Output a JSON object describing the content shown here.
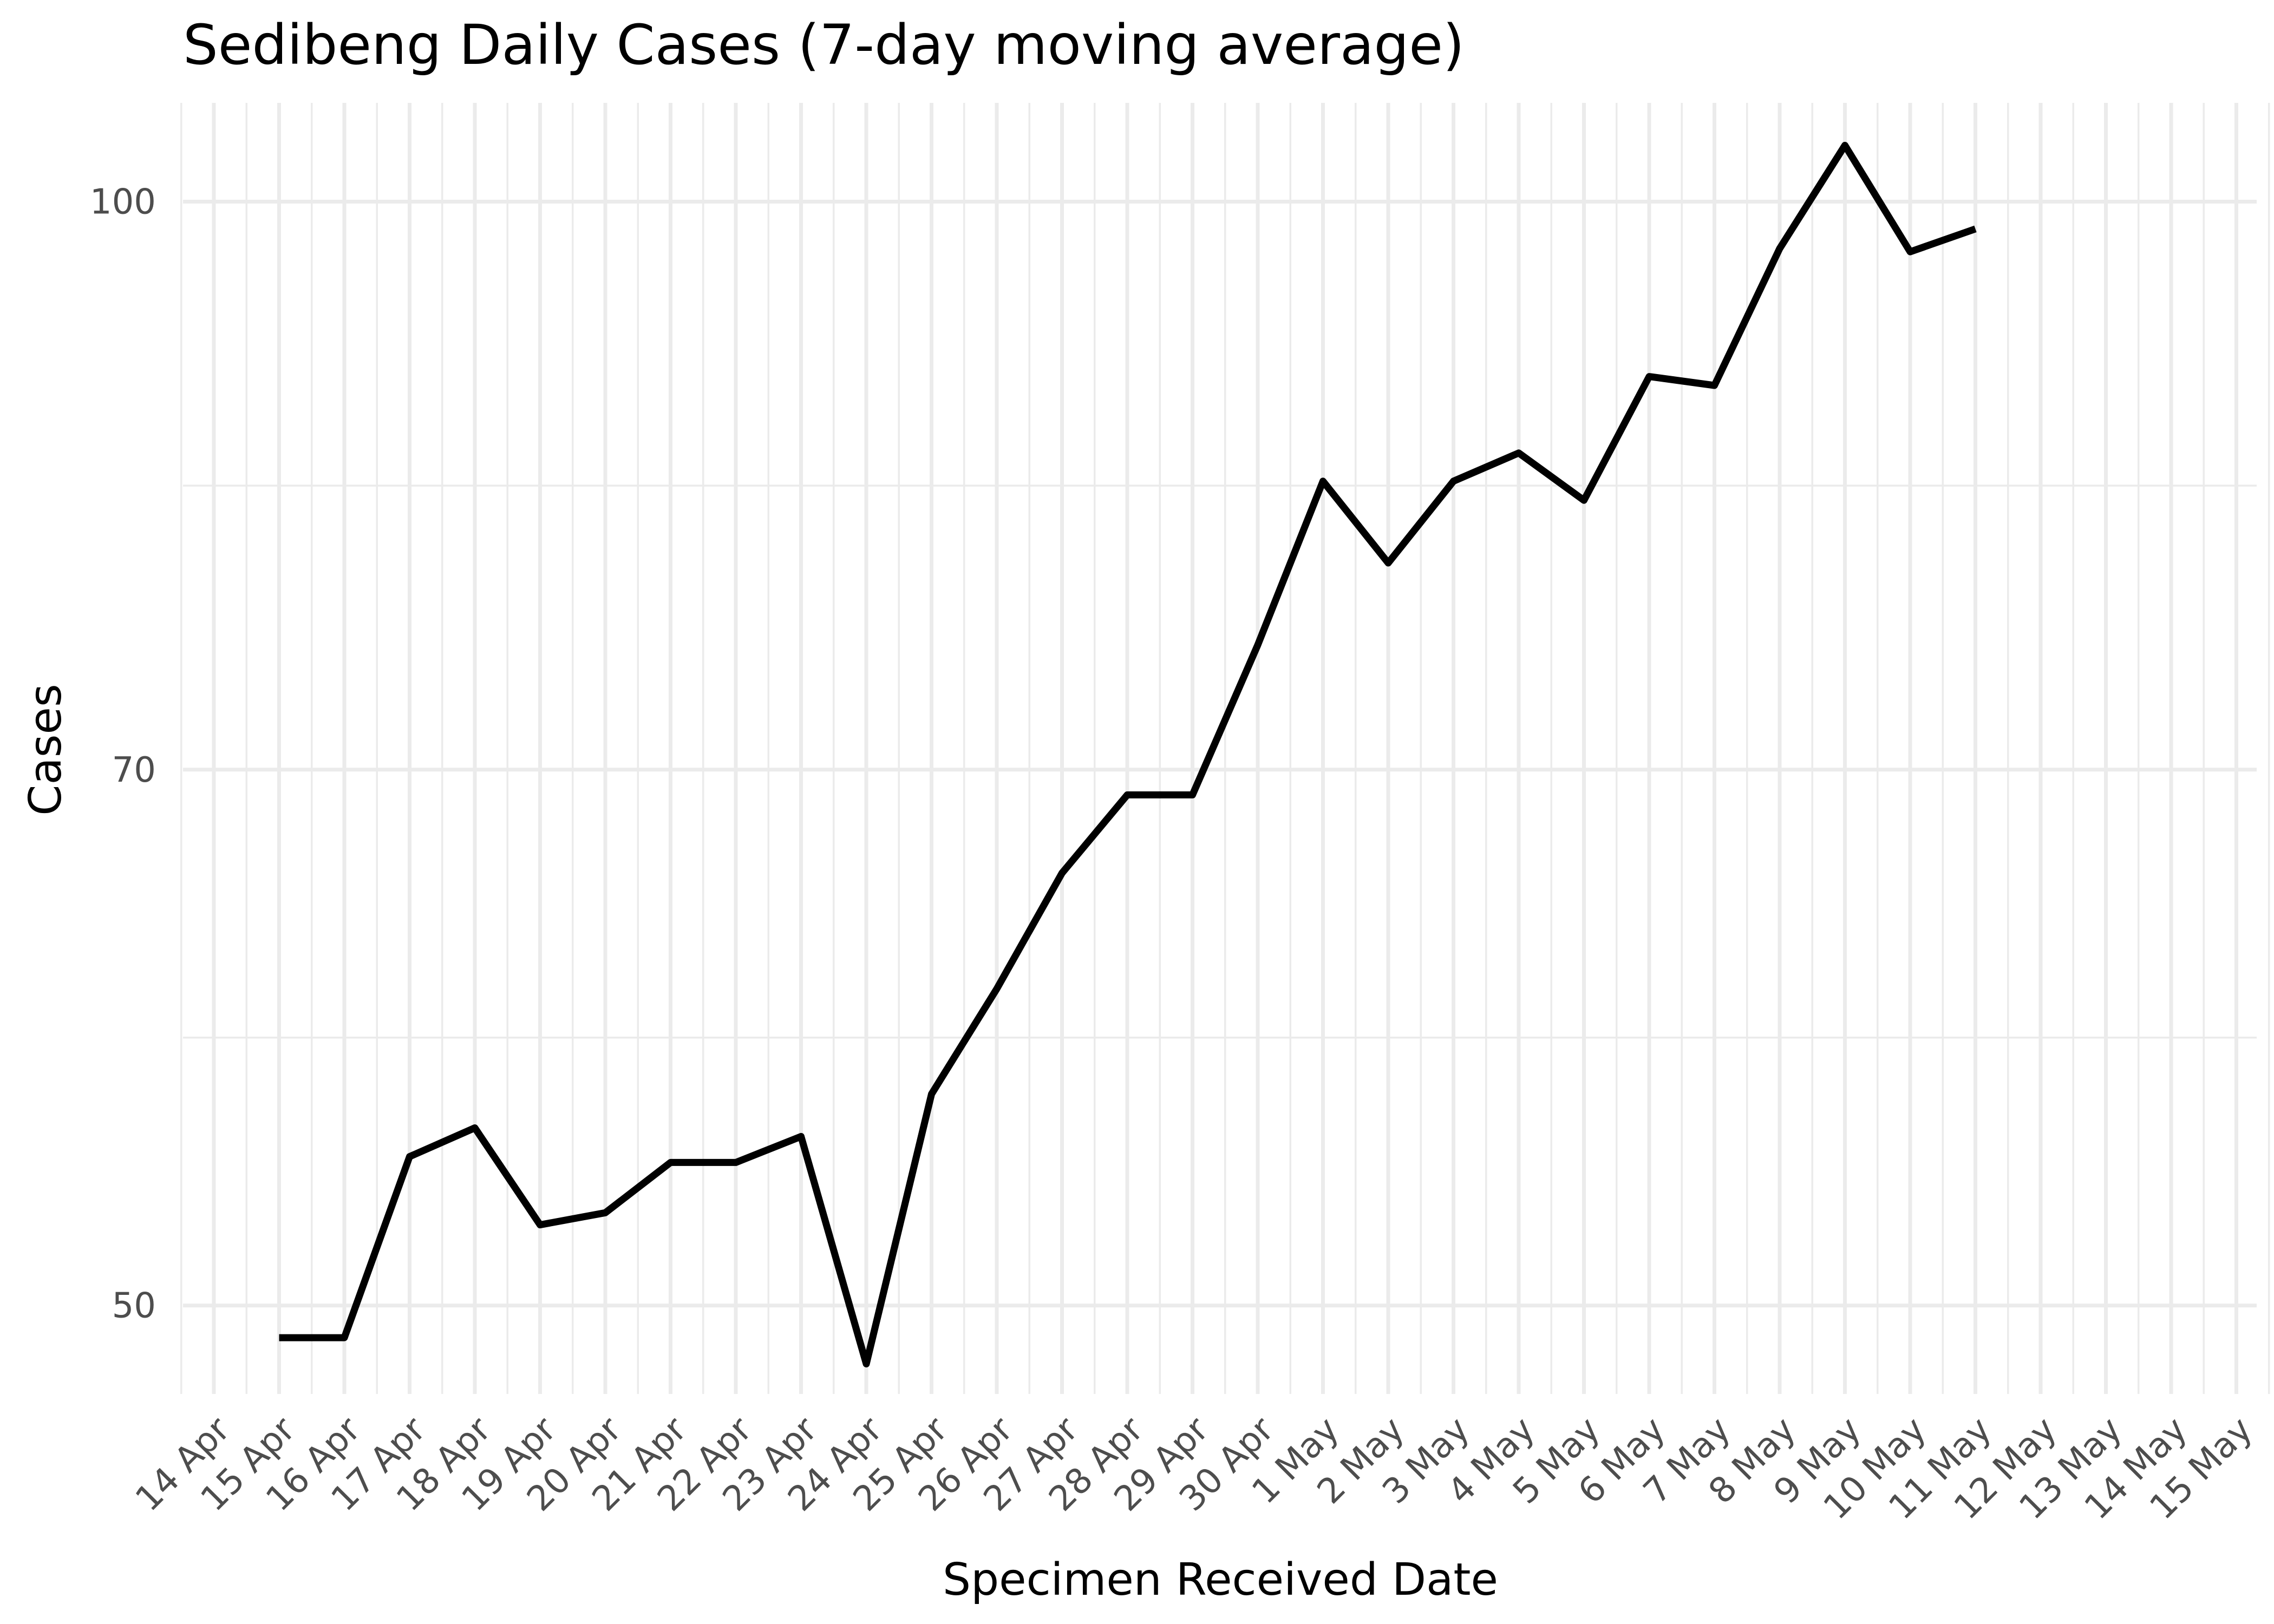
{
  "chart_data": {
    "type": "line",
    "title": "Sedibeng Daily Cases (7-day moving average)",
    "xlabel": "Specimen Received Date",
    "ylabel": "Cases",
    "x_tick_labels": [
      "14 Apr",
      "15 Apr",
      "16 Apr",
      "17 Apr",
      "18 Apr",
      "19 Apr",
      "20 Apr",
      "21 Apr",
      "22 Apr",
      "23 Apr",
      "24 Apr",
      "25 Apr",
      "26 Apr",
      "27 Apr",
      "28 Apr",
      "29 Apr",
      "30 Apr",
      "1 May",
      "2 May",
      "3 May",
      "4 May",
      "5 May",
      "6 May",
      "7 May",
      "8 May",
      "9 May",
      "10 May",
      "11 May",
      "12 May",
      "13 May",
      "14 May",
      "15 May"
    ],
    "y_ticks": [
      50,
      70,
      100
    ],
    "y_scale": "log",
    "ylim": [
      47.3,
      106.4
    ],
    "grid": true,
    "series": [
      {
        "color": "#000000",
        "x": [
          "15 Apr",
          "16 Apr",
          "17 Apr",
          "18 Apr",
          "19 Apr",
          "20 Apr",
          "21 Apr",
          "22 Apr",
          "23 Apr",
          "24 Apr",
          "25 Apr",
          "26 Apr",
          "27 Apr",
          "28 Apr",
          "29 Apr",
          "30 Apr",
          "1 May",
          "2 May",
          "3 May",
          "4 May",
          "5 May",
          "6 May",
          "7 May",
          "8 May",
          "9 May",
          "10 May",
          "11 May"
        ],
        "values": [
          49.0,
          49.0,
          54.9,
          55.9,
          52.6,
          53.0,
          54.7,
          54.7,
          55.6,
          48.2,
          57.1,
          61.0,
          65.6,
          68.9,
          68.9,
          75.7,
          83.9,
          79.7,
          83.9,
          85.4,
          82.9,
          89.6,
          89.1,
          97.1,
          103.6,
          96.9,
          98.3
        ]
      }
    ]
  }
}
